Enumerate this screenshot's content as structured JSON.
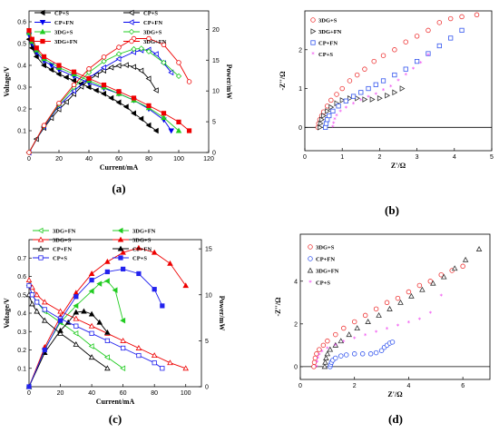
{
  "chart_data": [
    {
      "type": "line",
      "caption": "(a)",
      "xlabel": "Current/mA",
      "ylabel": "Voltage/V",
      "y2label": "Power/mW",
      "xlim": [
        0,
        120
      ],
      "ylim": [
        0,
        0.65
      ],
      "y2lim": [
        0,
        23
      ],
      "xticks": [
        0,
        20,
        40,
        60,
        80,
        100,
        120
      ],
      "yticks": [
        0.1,
        0.2,
        0.3,
        0.4,
        0.5,
        0.6
      ],
      "y2ticks": [
        0,
        5,
        10,
        15,
        20
      ],
      "legend_position": "top",
      "series": [
        {
          "name": "CP+S",
          "axis": "left",
          "color": "#000000",
          "marker": "filled-triangle-left",
          "x": [
            0,
            2,
            5,
            10,
            15,
            20,
            25,
            30,
            35,
            40,
            45,
            50,
            55,
            60,
            65,
            70,
            75,
            80,
            85
          ],
          "y": [
            0.52,
            0.48,
            0.44,
            0.4,
            0.38,
            0.36,
            0.345,
            0.33,
            0.315,
            0.3,
            0.285,
            0.27,
            0.25,
            0.23,
            0.21,
            0.18,
            0.155,
            0.125,
            0.1
          ]
        },
        {
          "name": "CP+S",
          "axis": "right",
          "color": "#000000",
          "marker": "open-triangle-left",
          "x": [
            0,
            5,
            10,
            15,
            20,
            25,
            30,
            35,
            40,
            45,
            50,
            55,
            60,
            65,
            70,
            75,
            80,
            85
          ],
          "y": [
            0,
            2.2,
            4,
            5.6,
            7,
            8.2,
            9.5,
            10.7,
            11.8,
            12.6,
            13.3,
            13.8,
            14.1,
            14.2,
            13.9,
            13.3,
            12,
            10.1
          ]
        },
        {
          "name": "CP+FN",
          "axis": "left",
          "color": "#0000ee",
          "marker": "filled-triangle-down",
          "x": [
            0,
            2,
            5,
            10,
            15,
            20,
            30,
            40,
            50,
            60,
            70,
            80,
            90,
            95
          ],
          "y": [
            0.54,
            0.5,
            0.46,
            0.42,
            0.4,
            0.38,
            0.35,
            0.32,
            0.295,
            0.27,
            0.24,
            0.2,
            0.15,
            0.1
          ]
        },
        {
          "name": "CP+FN",
          "axis": "right",
          "color": "#0000ee",
          "marker": "open-triangle-left",
          "x": [
            0,
            10,
            20,
            30,
            40,
            50,
            60,
            70,
            75,
            80,
            85,
            90,
            95
          ],
          "y": [
            0,
            4.2,
            7.6,
            10,
            12.1,
            13.8,
            15.2,
            16.3,
            16.6,
            16.7,
            16,
            14.5,
            13
          ]
        },
        {
          "name": "3DG+S",
          "axis": "left",
          "color": "#22cc22",
          "marker": "filled-triangle-up",
          "x": [
            0,
            2,
            5,
            10,
            20,
            30,
            40,
            50,
            60,
            70,
            80,
            90,
            100
          ],
          "y": [
            0.55,
            0.51,
            0.47,
            0.43,
            0.39,
            0.36,
            0.33,
            0.3,
            0.27,
            0.24,
            0.205,
            0.16,
            0.1
          ]
        },
        {
          "name": "3DG+S",
          "axis": "right",
          "color": "#22cc22",
          "marker": "open-diamond",
          "x": [
            0,
            10,
            20,
            30,
            40,
            50,
            60,
            70,
            75,
            80,
            90,
            100
          ],
          "y": [
            0,
            4.3,
            7.8,
            10.6,
            13,
            14.8,
            16,
            16.8,
            16.9,
            16.4,
            14.6,
            12.4
          ]
        },
        {
          "name": "3DG+FN",
          "axis": "left",
          "color": "#ee0000",
          "marker": "filled-square",
          "x": [
            0,
            2,
            5,
            10,
            20,
            30,
            40,
            50,
            60,
            70,
            80,
            90,
            100,
            107
          ],
          "y": [
            0.56,
            0.52,
            0.48,
            0.44,
            0.4,
            0.37,
            0.34,
            0.31,
            0.28,
            0.25,
            0.215,
            0.18,
            0.14,
            0.1
          ]
        },
        {
          "name": "3DG+FN",
          "axis": "right",
          "color": "#ee0000",
          "marker": "open-circle",
          "x": [
            0,
            10,
            20,
            30,
            40,
            50,
            60,
            70,
            80,
            90,
            100,
            107
          ],
          "y": [
            0,
            4.4,
            8,
            11,
            13.6,
            15.5,
            17.1,
            18.5,
            18.5,
            17.5,
            14.6,
            11.5
          ]
        }
      ]
    },
    {
      "type": "scatter",
      "caption": "(b)",
      "xlabel": "Z'/Ω",
      "ylabel": "-Z''/Ω",
      "xlim": [
        0,
        5
      ],
      "ylim": [
        -0.6,
        3.0
      ],
      "xticks": [
        0,
        1,
        2,
        3,
        4,
        5
      ],
      "yticks": [
        0,
        1,
        2
      ],
      "legend_position": "top-left",
      "series": [
        {
          "name": "3DG+S",
          "color": "#ee3333",
          "marker": "open-circle",
          "x": [
            0.35,
            0.37,
            0.4,
            0.45,
            0.5,
            0.6,
            0.7,
            0.85,
            1.0,
            1.2,
            1.4,
            1.6,
            1.85,
            2.1,
            2.4,
            2.7,
            3.0,
            3.3,
            3.6,
            3.9,
            4.2,
            4.6
          ],
          "y": [
            0,
            0.1,
            0.2,
            0.3,
            0.4,
            0.55,
            0.7,
            0.85,
            1.0,
            1.2,
            1.35,
            1.5,
            1.7,
            1.85,
            2.0,
            2.2,
            2.35,
            2.5,
            2.7,
            2.8,
            2.85,
            2.9
          ]
        },
        {
          "name": "3DG+FN",
          "color": "#333333",
          "marker": "open-triangle-right",
          "x": [
            0.4,
            0.42,
            0.45,
            0.5,
            0.6,
            0.7,
            0.85,
            1.0,
            1.2,
            1.4,
            1.6,
            1.8,
            2.0,
            2.2,
            2.4,
            2.6
          ],
          "y": [
            0,
            0.1,
            0.2,
            0.3,
            0.42,
            0.52,
            0.62,
            0.7,
            0.75,
            0.75,
            0.72,
            0.72,
            0.75,
            0.82,
            0.9,
            1.0
          ]
        },
        {
          "name": "CP+FN",
          "color": "#3355ee",
          "marker": "open-square",
          "x": [
            0.55,
            0.57,
            0.6,
            0.65,
            0.75,
            0.9,
            1.1,
            1.3,
            1.5,
            1.7,
            1.9,
            2.1,
            2.4,
            2.7,
            3.0,
            3.3,
            3.6,
            3.9,
            4.2
          ],
          "y": [
            0,
            0.1,
            0.2,
            0.3,
            0.42,
            0.55,
            0.68,
            0.8,
            0.9,
            1.0,
            1.1,
            1.2,
            1.35,
            1.5,
            1.7,
            1.9,
            2.1,
            2.3,
            2.5
          ]
        },
        {
          "name": "CP+S",
          "color": "#ee33ee",
          "marker": "star",
          "x": [
            0.75,
            0.77,
            0.8,
            0.85,
            0.95,
            1.1,
            1.3,
            1.5,
            1.7,
            1.9,
            2.1,
            2.3,
            2.5,
            2.7,
            2.9,
            3.1,
            3.3
          ],
          "y": [
            0,
            0.1,
            0.2,
            0.3,
            0.4,
            0.5,
            0.6,
            0.7,
            0.78,
            0.85,
            0.95,
            1.05,
            1.2,
            1.35,
            1.5,
            1.65,
            1.85
          ]
        }
      ]
    },
    {
      "type": "line",
      "caption": "(c)",
      "xlabel": "Current/mA",
      "ylabel": "Voltage/V",
      "y2label": "Power/mW",
      "xlim": [
        0,
        110
      ],
      "ylim": [
        0,
        0.8
      ],
      "y2lim": [
        0,
        16
      ],
      "xticks": [
        0,
        20,
        40,
        60,
        80,
        100
      ],
      "yticks": [
        0.1,
        0.2,
        0.3,
        0.4,
        0.5,
        0.6,
        0.7
      ],
      "y2ticks": [
        0,
        5,
        10,
        15
      ],
      "legend_position": "top-left",
      "series": [
        {
          "name": "3DG+FN",
          "axis": "left",
          "color": "#22cc22",
          "marker": "open-triangle-left",
          "x": [
            0,
            2,
            5,
            10,
            20,
            30,
            40,
            50,
            60
          ],
          "y": [
            0.55,
            0.5,
            0.46,
            0.41,
            0.35,
            0.29,
            0.22,
            0.16,
            0.1
          ]
        },
        {
          "name": "3DG+FN",
          "axis": "right",
          "color": "#22cc22",
          "marker": "filled-triangle-left",
          "x": [
            0,
            10,
            20,
            30,
            40,
            45,
            50,
            55,
            60
          ],
          "y": [
            0,
            4.1,
            7,
            8.8,
            10.4,
            11.2,
            11.5,
            10.5,
            7.2
          ]
        },
        {
          "name": "3DG+S",
          "axis": "left",
          "color": "#ee0000",
          "marker": "open-triangle-up",
          "x": [
            0,
            2,
            5,
            10,
            20,
            30,
            40,
            50,
            60,
            70,
            80,
            90,
            100
          ],
          "y": [
            0.58,
            0.54,
            0.5,
            0.46,
            0.41,
            0.37,
            0.33,
            0.29,
            0.25,
            0.21,
            0.17,
            0.13,
            0.1
          ]
        },
        {
          "name": "3DG+S",
          "axis": "right",
          "color": "#ee0000",
          "marker": "filled-triangle-up",
          "x": [
            0,
            10,
            20,
            30,
            40,
            50,
            60,
            70,
            80,
            90,
            100
          ],
          "y": [
            0,
            4.3,
            7.6,
            10.2,
            12.3,
            13.6,
            14.6,
            15.1,
            14.6,
            13.4,
            11
          ]
        },
        {
          "name": "CP+FN",
          "axis": "left",
          "color": "#000000",
          "marker": "open-triangle-up",
          "x": [
            0,
            2,
            5,
            10,
            20,
            30,
            40,
            50
          ],
          "y": [
            0.5,
            0.45,
            0.41,
            0.36,
            0.29,
            0.23,
            0.16,
            0.1
          ]
        },
        {
          "name": "CP+FN",
          "axis": "right",
          "color": "#000000",
          "marker": "filled-triangle-up",
          "x": [
            0,
            10,
            20,
            25,
            30,
            35,
            40,
            45,
            50
          ],
          "y": [
            0,
            3.7,
            6.1,
            7,
            8.1,
            8.2,
            7.9,
            7,
            5.9
          ]
        },
        {
          "name": "CP+S",
          "axis": "left",
          "color": "#2222ee",
          "marker": "open-square",
          "x": [
            0,
            2,
            5,
            10,
            20,
            30,
            40,
            50,
            60,
            70,
            80,
            85
          ],
          "y": [
            0.55,
            0.5,
            0.46,
            0.42,
            0.37,
            0.33,
            0.29,
            0.25,
            0.21,
            0.17,
            0.13,
            0.1
          ]
        },
        {
          "name": "CP+S",
          "axis": "right",
          "color": "#2222ee",
          "marker": "filled-square",
          "x": [
            0,
            10,
            20,
            30,
            40,
            50,
            60,
            70,
            80,
            85
          ],
          "y": [
            0,
            4,
            7.2,
            9.8,
            11.6,
            12.5,
            12.8,
            12.3,
            10.6,
            8.8
          ]
        }
      ]
    },
    {
      "type": "scatter",
      "caption": "(d)",
      "xlabel": "Z'/Ω",
      "ylabel": "-Z''/Ω",
      "xlim": [
        0,
        7
      ],
      "ylim": [
        -0.6,
        6.2
      ],
      "xticks": [
        0,
        2,
        4,
        6
      ],
      "yticks": [
        0,
        2,
        4
      ],
      "legend_position": "top-left",
      "series": [
        {
          "name": "3DG+S",
          "color": "#ee3333",
          "marker": "open-circle",
          "x": [
            0.5,
            0.52,
            0.55,
            0.6,
            0.7,
            0.85,
            1.0,
            1.3,
            1.6,
            2.0,
            2.4,
            2.8,
            3.2,
            3.6,
            4.0,
            4.4,
            4.8,
            5.2,
            5.6,
            6.0
          ],
          "y": [
            0,
            0.2,
            0.4,
            0.6,
            0.8,
            1.0,
            1.2,
            1.5,
            1.8,
            2.1,
            2.4,
            2.7,
            3.0,
            3.2,
            3.5,
            3.8,
            4.0,
            4.3,
            4.5,
            4.7
          ]
        },
        {
          "name": "CP+FN",
          "color": "#3355ee",
          "marker": "open-circle",
          "x": [
            1.1,
            1.12,
            1.15,
            1.2,
            1.3,
            1.5,
            1.7,
            2.0,
            2.3,
            2.6,
            2.8,
            3.0,
            3.1,
            3.2,
            3.3,
            3.4
          ],
          "y": [
            0,
            0.1,
            0.2,
            0.3,
            0.4,
            0.5,
            0.55,
            0.6,
            0.6,
            0.6,
            0.65,
            0.75,
            0.9,
            1.0,
            1.1,
            1.15
          ]
        },
        {
          "name": "3DG+FN",
          "color": "#333333",
          "marker": "open-triangle-up",
          "x": [
            0.9,
            0.92,
            0.95,
            1.0,
            1.1,
            1.3,
            1.5,
            1.8,
            2.1,
            2.5,
            2.9,
            3.3,
            3.7,
            4.1,
            4.5,
            4.9,
            5.3,
            5.7,
            6.1,
            6.6
          ],
          "y": [
            0,
            0.2,
            0.4,
            0.6,
            0.8,
            1.0,
            1.2,
            1.5,
            1.8,
            2.1,
            2.4,
            2.7,
            3.0,
            3.3,
            3.6,
            3.9,
            4.2,
            4.6,
            5.0,
            5.5
          ]
        },
        {
          "name": "CP+S",
          "color": "#ee33ee",
          "marker": "star",
          "x": [
            0.6,
            0.62,
            0.65,
            0.7,
            0.8,
            1.0,
            1.3,
            1.6,
            2.0,
            2.4,
            2.8,
            3.2,
            3.6,
            4.0,
            4.4,
            4.8,
            5.2
          ],
          "y": [
            0,
            0.2,
            0.4,
            0.55,
            0.7,
            0.85,
            1.0,
            1.15,
            1.3,
            1.45,
            1.6,
            1.75,
            1.9,
            2.05,
            2.2,
            2.5,
            3.3
          ]
        }
      ]
    }
  ]
}
